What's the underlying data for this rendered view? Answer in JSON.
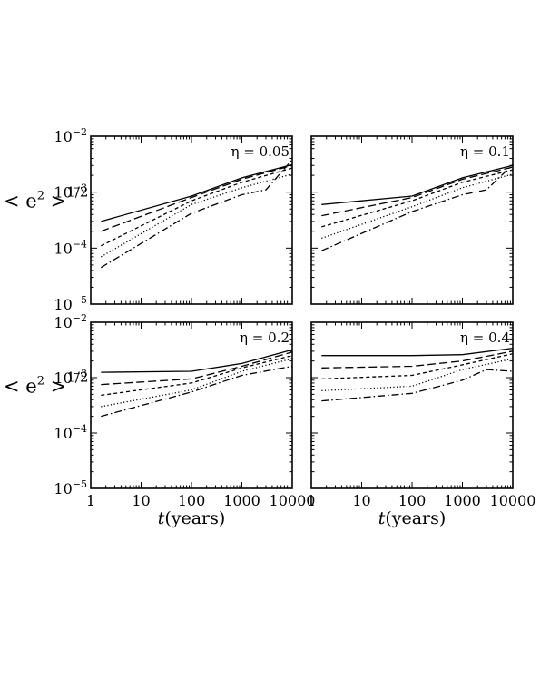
{
  "chart_data": {
    "type": "line",
    "layout": "2x2 grid of panels, shared log-log axes",
    "x_scale": "log",
    "y_scale": "log",
    "xlim": [
      1,
      10000
    ],
    "ylim": [
      1e-05,
      0.01
    ],
    "x_ticks": [
      1,
      10,
      100,
      1000,
      10000
    ],
    "x_tick_labels": [
      "1",
      "10",
      "100",
      "1000",
      "10000"
    ],
    "y_ticks": [
      1e-05,
      0.0001,
      0.001,
      0.01
    ],
    "y_tick_labels": [
      {
        "base": "10",
        "exp": "−5"
      },
      {
        "base": "10",
        "exp": "−4"
      },
      {
        "base": "10",
        "exp": "−3"
      },
      {
        "base": "10",
        "exp": "−2"
      }
    ],
    "ylabel": {
      "base": "< e",
      "sup": "2",
      "rest": " >",
      "exp": "1/2"
    },
    "xlabel": {
      "var": "t",
      "rest": "(years)"
    },
    "grid": false,
    "series_styles": [
      "solid",
      "dashed",
      "short-dashed",
      "dotted",
      "dash-dot"
    ],
    "panels": [
      {
        "label": "η = 0.05",
        "series": [
          {
            "style": "solid",
            "x": [
              1.6,
              100,
              1000,
              10000
            ],
            "y": [
              0.0003,
              0.00085,
              0.0018,
              0.0031
            ]
          },
          {
            "style": "dashed",
            "x": [
              1.6,
              100,
              1000,
              10000
            ],
            "y": [
              0.0002,
              0.0008,
              0.0017,
              0.003
            ]
          },
          {
            "style": "short-dashed",
            "x": [
              1.6,
              100,
              1000,
              10000
            ],
            "y": [
              0.00011,
              0.0007,
              0.0015,
              0.0027
            ]
          },
          {
            "style": "dotted",
            "x": [
              1.6,
              100,
              1000,
              10000
            ],
            "y": [
              7e-05,
              0.0006,
              0.0012,
              0.0021
            ]
          },
          {
            "style": "dash-dot",
            "x": [
              1.6,
              100,
              1000,
              3000,
              10000
            ],
            "y": [
              4.5e-05,
              0.00042,
              0.0009,
              0.0011,
              0.0038
            ]
          }
        ]
      },
      {
        "label": "η = 0.1",
        "series": [
          {
            "style": "solid",
            "x": [
              1.6,
              100,
              1000,
              10000
            ],
            "y": [
              0.0006,
              0.00085,
              0.0018,
              0.003
            ]
          },
          {
            "style": "dashed",
            "x": [
              1.6,
              100,
              1000,
              10000
            ],
            "y": [
              0.00038,
              0.0008,
              0.0017,
              0.0028
            ]
          },
          {
            "style": "short-dashed",
            "x": [
              1.6,
              100,
              1000,
              10000
            ],
            "y": [
              0.00024,
              0.0007,
              0.0015,
              0.0025
            ]
          },
          {
            "style": "dotted",
            "x": [
              1.6,
              100,
              1000,
              10000
            ],
            "y": [
              0.00015,
              0.00055,
              0.0012,
              0.0021
            ]
          },
          {
            "style": "dash-dot",
            "x": [
              1.6,
              100,
              1000,
              3000,
              10000
            ],
            "y": [
              9e-05,
              0.00045,
              0.0009,
              0.0011,
              0.0031
            ]
          }
        ]
      },
      {
        "label": "η = 0.2",
        "series": [
          {
            "style": "solid",
            "x": [
              1.6,
              100,
              1000,
              10000
            ],
            "y": [
              0.00125,
              0.0013,
              0.0018,
              0.0032
            ]
          },
          {
            "style": "dashed",
            "x": [
              1.6,
              100,
              1000,
              10000
            ],
            "y": [
              0.00075,
              0.00095,
              0.0016,
              0.0029
            ]
          },
          {
            "style": "short-dashed",
            "x": [
              1.6,
              100,
              1000,
              10000
            ],
            "y": [
              0.00048,
              0.0008,
              0.0015,
              0.0025
            ]
          },
          {
            "style": "dotted",
            "x": [
              1.6,
              100,
              1000,
              10000
            ],
            "y": [
              0.0003,
              0.0006,
              0.0013,
              0.0022
            ]
          },
          {
            "style": "dash-dot",
            "x": [
              1.6,
              100,
              1000,
              10000
            ],
            "y": [
              0.0002,
              0.00055,
              0.0011,
              0.0016
            ]
          }
        ]
      },
      {
        "label": "η = 0.4",
        "series": [
          {
            "style": "solid",
            "x": [
              1.6,
              100,
              1000,
              10000
            ],
            "y": [
              0.0025,
              0.0025,
              0.0026,
              0.0034
            ]
          },
          {
            "style": "dashed",
            "x": [
              1.6,
              100,
              1000,
              10000
            ],
            "y": [
              0.0015,
              0.0016,
              0.002,
              0.003
            ]
          },
          {
            "style": "short-dashed",
            "x": [
              1.6,
              100,
              1000,
              10000
            ],
            "y": [
              0.00095,
              0.0011,
              0.0017,
              0.0027
            ]
          },
          {
            "style": "dotted",
            "x": [
              1.6,
              100,
              1000,
              10000
            ],
            "y": [
              0.00058,
              0.0007,
              0.0014,
              0.0022
            ]
          },
          {
            "style": "dash-dot",
            "x": [
              1.6,
              100,
              1000,
              3000,
              10000
            ],
            "y": [
              0.00038,
              0.00052,
              0.0009,
              0.0014,
              0.0013
            ]
          }
        ]
      }
    ]
  }
}
